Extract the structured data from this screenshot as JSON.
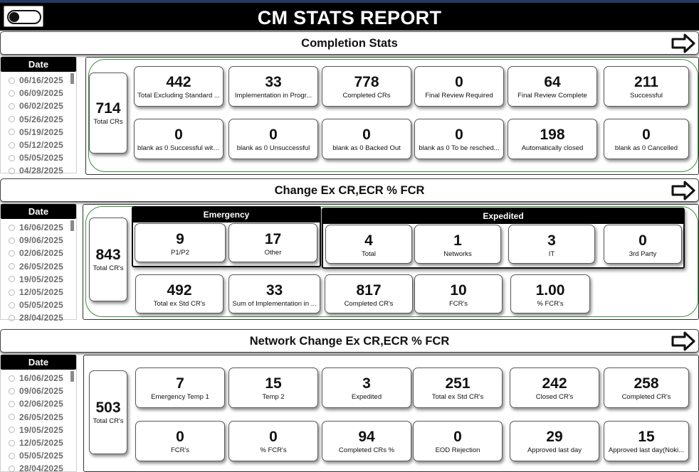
{
  "report": {
    "title": "CM STATS REPORT"
  },
  "toggle": {
    "state": "off"
  },
  "date_slicer_label": "Date",
  "s1": {
    "title": "Completion Stats",
    "dates": [
      "06/16/2025",
      "06/09/2025",
      "06/02/2025",
      "05/26/2025",
      "05/19/2025",
      "05/12/2025",
      "05/05/2025",
      "04/28/2025"
    ],
    "total": {
      "value": "714",
      "label": "Total CRs"
    },
    "row1": [
      {
        "value": "442",
        "label": "Total Excluding Standard ..."
      },
      {
        "value": "33",
        "label": "Implementation in Progr..."
      },
      {
        "value": "778",
        "label": "Completed CRs"
      },
      {
        "value": "0",
        "label": "Final Review Required"
      },
      {
        "value": "64",
        "label": "Final Review Complete"
      },
      {
        "value": "211",
        "label": "Successful"
      }
    ],
    "row2": [
      {
        "value": "0",
        "label": "blank as 0 Successful with ..."
      },
      {
        "value": "0",
        "label": "blank as 0 Unsuccessful"
      },
      {
        "value": "0",
        "label": "blank as 0 Backed Out"
      },
      {
        "value": "0",
        "label": "blank as 0 To be resched..."
      },
      {
        "value": "198",
        "label": "Automatically closed"
      },
      {
        "value": "0",
        "label": "blank as 0 Cancelled"
      }
    ]
  },
  "s2": {
    "title": "Change Ex CR,ECR % FCR",
    "dates": [
      "16/06/2025",
      "09/06/2025",
      "02/06/2025",
      "26/05/2025",
      "19/05/2025",
      "12/05/2025",
      "05/05/2025",
      "28/04/2025"
    ],
    "total": {
      "value": "843",
      "label": "Total CR's"
    },
    "emergency": {
      "title": "Emergency",
      "cards": [
        {
          "value": "9",
          "label": "P1/P2"
        },
        {
          "value": "17",
          "label": "Other"
        }
      ]
    },
    "expedited": {
      "title": "Expedited",
      "cards": [
        {
          "value": "4",
          "label": "Total"
        },
        {
          "value": "1",
          "label": "Networks"
        },
        {
          "value": "3",
          "label": "IT"
        },
        {
          "value": "0",
          "label": "3rd Party"
        }
      ]
    },
    "row2": [
      {
        "value": "492",
        "label": "Total ex Std CR's"
      },
      {
        "value": "33",
        "label": "Sum of Implementation in ..."
      },
      {
        "value": "817",
        "label": "Completed CR's"
      },
      {
        "value": "10",
        "label": "FCR's"
      },
      {
        "value": "1.00",
        "label": "% FCR's"
      }
    ]
  },
  "s3": {
    "title": "Network Change Ex CR,ECR % FCR",
    "dates": [
      "16/06/2025",
      "09/06/2025",
      "02/06/2025",
      "26/05/2025",
      "19/05/2025",
      "12/05/2025",
      "05/05/2025",
      "28/04/2025"
    ],
    "total": {
      "value": "503",
      "label": "Total CR's"
    },
    "row1": [
      {
        "value": "7",
        "label": "Emergency Temp 1"
      },
      {
        "value": "15",
        "label": "Temp 2"
      },
      {
        "value": "3",
        "label": "Expedited"
      },
      {
        "value": "251",
        "label": "Total ex Std CR's"
      },
      {
        "value": "242",
        "label": "Closed CR's"
      },
      {
        "value": "258",
        "label": "Completed CR's"
      }
    ],
    "row2": [
      {
        "value": "0",
        "label": "FCR's"
      },
      {
        "value": "0",
        "label": "% FCR's"
      },
      {
        "value": "94",
        "label": "Completed CRs %"
      },
      {
        "value": "0",
        "label": "EOD Rejection"
      },
      {
        "value": "29",
        "label": "Approved last day"
      },
      {
        "value": "15",
        "label": "Approved last day(Noki..."
      }
    ]
  }
}
